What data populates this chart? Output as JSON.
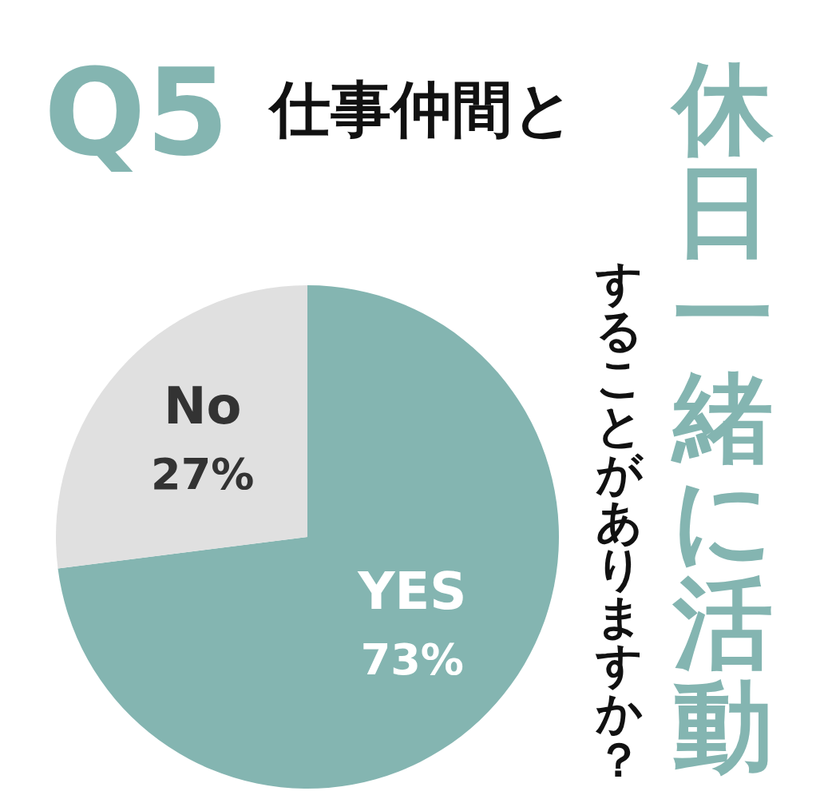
{
  "chart_data": {
    "type": "pie",
    "title": "Q5",
    "subtitle": "仕事仲間と",
    "annotations": [
      "休日一緒に活動",
      "することがありますか？"
    ],
    "categories": [
      "YES",
      "No"
    ],
    "values": [
      73,
      27
    ],
    "colors": [
      "#84b5b1",
      "#e0e0e0"
    ],
    "value_labels": [
      "73%",
      "27%"
    ]
  }
}
